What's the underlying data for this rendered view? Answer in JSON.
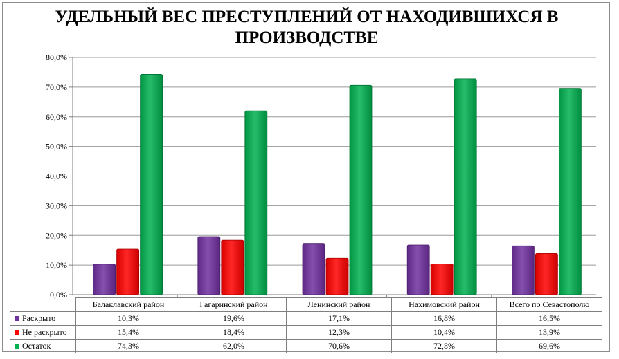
{
  "chart_data": {
    "type": "bar",
    "title": "УДЕЛЬНЫЙ ВЕС ПРЕСТУПЛЕНИЙ ОТ НАХОДИВШИХСЯ В ПРОИЗВОДСТВЕ",
    "categories": [
      "Балаклавский  район",
      "Гагаринский район",
      "Ленинский район",
      "Нахимовский  район",
      "Всего по Севастополю"
    ],
    "series": [
      {
        "name": "Раскрыто",
        "color": "#7030a0",
        "values": [
          10.3,
          19.6,
          17.1,
          16.8,
          16.5
        ],
        "labels": [
          "10,3%",
          "19,6%",
          "17,1%",
          "16,8%",
          "16,5%"
        ]
      },
      {
        "name": "Не раскрыто",
        "color": "#ff0000",
        "values": [
          15.4,
          18.4,
          12.3,
          10.4,
          13.9
        ],
        "labels": [
          "15,4%",
          "18,4%",
          "12,3%",
          "10,4%",
          "13,9%"
        ]
      },
      {
        "name": "Остаток",
        "color": "#00b050",
        "values": [
          74.3,
          62.0,
          70.6,
          72.8,
          69.6
        ],
        "labels": [
          "74,3%",
          "62,0%",
          "70,6%",
          "72,8%",
          "69,6%"
        ]
      }
    ],
    "ylim": [
      0,
      80
    ],
    "yticks": [
      "0,0%",
      "10,0%",
      "20,0%",
      "30,0%",
      "40,0%",
      "50,0%",
      "60,0%",
      "70,0%",
      "80,0%"
    ],
    "grid": true,
    "legend": "data-table"
  }
}
